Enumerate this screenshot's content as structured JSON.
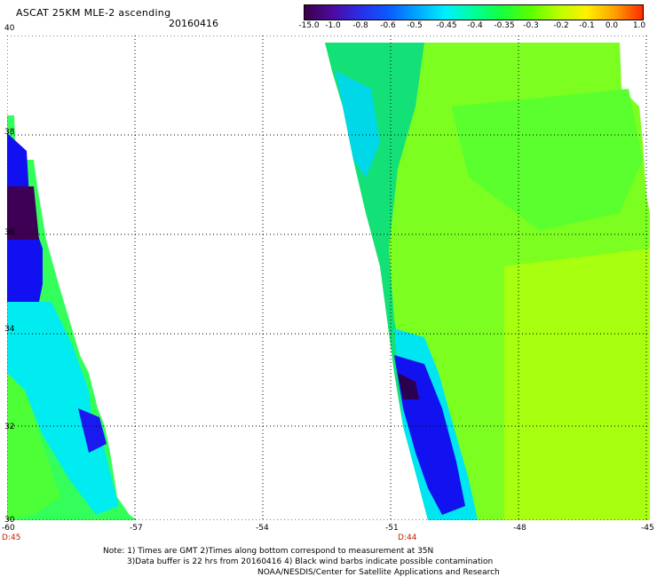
{
  "header": {
    "title": "ASCAT 25KM MLE-2 ascending",
    "date": "20160416"
  },
  "colorbar": {
    "labels": [
      "-15.0",
      "-1.0",
      "-0.8",
      "-0.6",
      "-0.5",
      "-0.45",
      "-0.4",
      "-0.35",
      "-0.3",
      "-0.2",
      "-0.1",
      "0.0",
      "1.0"
    ],
    "colors": [
      "#3a0048",
      "#4c0aa0",
      "#2a2ee8",
      "#0a5cff",
      "#00a6ff",
      "#00f0ff",
      "#00ff9a",
      "#16ff3e",
      "#58ff00",
      "#b8ff00",
      "#fff000",
      "#ffa000",
      "#ff2a00"
    ]
  },
  "map": {
    "lon_labels": [
      "-60",
      "-57",
      "-54",
      "-51",
      "-48",
      "-45"
    ],
    "lat_labels": [
      "40",
      "38",
      "36",
      "34",
      "32",
      "30"
    ],
    "time_labels": [
      "D:45",
      "D:44"
    ]
  },
  "notes": {
    "line1": "Note: 1) Times are GMT 2)Times along bottom correspond to measurement at 35N",
    "line2": "3)Data buffer is 22 hrs from 20160416 4) Black wind barbs indicate possible contamination",
    "line3": "NOAA/NESDIS/Center for Satellite Applications and Research"
  }
}
